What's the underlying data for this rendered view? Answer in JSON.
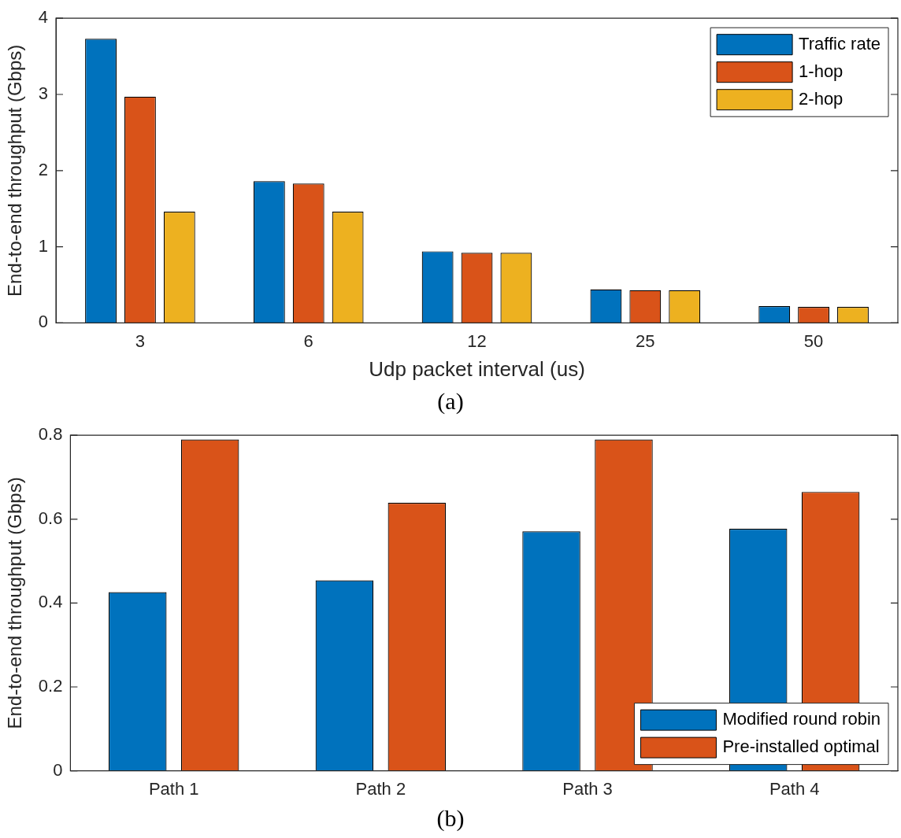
{
  "chart_data": [
    {
      "type": "bar",
      "xlabel": "Udp packet interval (us)",
      "ylabel": "End-to-end throughput (Gbps)",
      "categories": [
        "3",
        "6",
        "12",
        "25",
        "50"
      ],
      "series": [
        {
          "name": "Traffic rate",
          "color": "#0072bd",
          "values": [
            3.73,
            1.86,
            0.94,
            0.44,
            0.22
          ]
        },
        {
          "name": "1-hop",
          "color": "#d95319",
          "values": [
            2.97,
            1.83,
            0.92,
            0.43,
            0.21
          ]
        },
        {
          "name": "2-hop",
          "color": "#edb120",
          "values": [
            1.46,
            1.46,
            0.92,
            0.43,
            0.21
          ]
        }
      ],
      "ylim": [
        0,
        4
      ],
      "yticks": [
        0,
        1,
        2,
        3,
        4
      ],
      "legend": "top right",
      "annotations": [
        "(a)"
      ]
    },
    {
      "type": "bar",
      "ylabel": "End-to-end throughput (Gbps)",
      "categories": [
        "Path 1",
        "Path 2",
        "Path 3",
        "Path 4"
      ],
      "series": [
        {
          "name": "Modified round robin",
          "color": "#0072bd",
          "values": [
            0.426,
            0.454,
            0.571,
            0.577
          ]
        },
        {
          "name": "Pre-installed optimal",
          "color": "#d95319",
          "values": [
            0.79,
            0.639,
            0.79,
            0.665
          ]
        }
      ],
      "ylim": [
        0,
        0.8
      ],
      "yticks": [
        0,
        0.2,
        0.4,
        0.6,
        0.8
      ],
      "legend": "bottom right",
      "annotations": [
        "(b)"
      ]
    }
  ]
}
